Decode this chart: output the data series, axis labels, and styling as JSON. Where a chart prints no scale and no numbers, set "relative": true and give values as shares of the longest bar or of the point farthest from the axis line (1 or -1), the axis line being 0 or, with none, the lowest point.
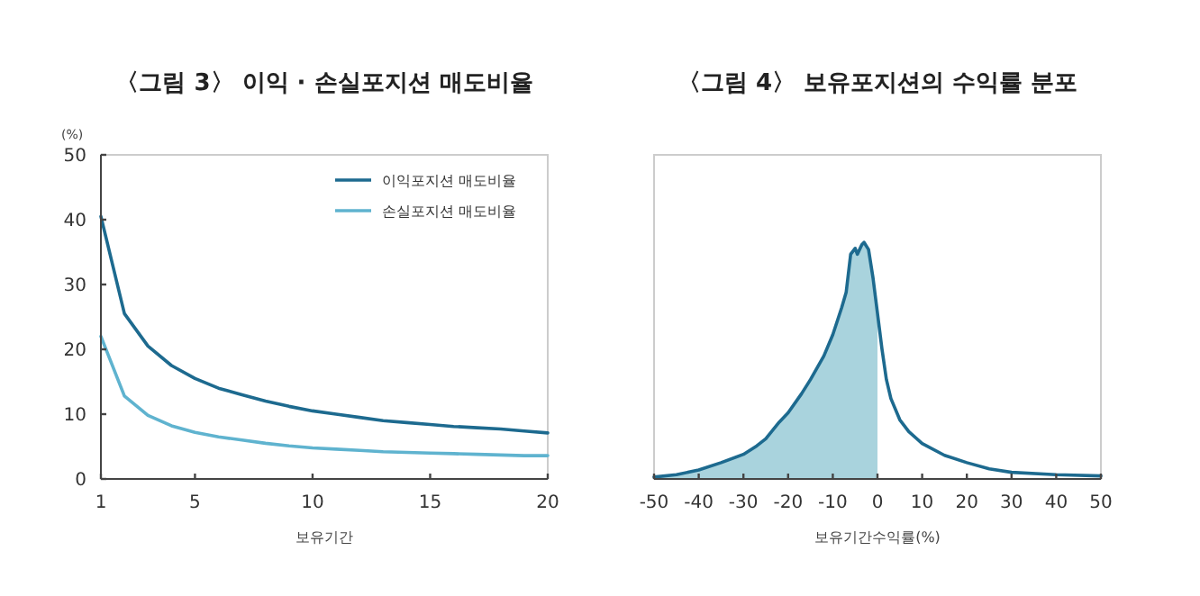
{
  "chart_data": [
    {
      "type": "line",
      "title": "〈그림 3〉 이익 · 손실포지션 매도비율",
      "xlabel": "보유기간",
      "ylabel": "(%)",
      "x": [
        1,
        2,
        3,
        4,
        5,
        6,
        7,
        8,
        9,
        10,
        11,
        12,
        13,
        14,
        15,
        16,
        17,
        18,
        19,
        20
      ],
      "xlim": [
        1,
        20
      ],
      "xticks": [
        1,
        5,
        10,
        15,
        20
      ],
      "ylim": [
        0,
        50
      ],
      "yticks": [
        0,
        10,
        20,
        30,
        40,
        50
      ],
      "legend": "top right",
      "series": [
        {
          "name": "이익포지션 매도비율",
          "color": "#1d6a8f",
          "values": [
            40.5,
            25.5,
            20.5,
            17.5,
            15.5,
            14,
            13,
            12,
            11.2,
            10.5,
            10,
            9.5,
            9,
            8.7,
            8.4,
            8.1,
            7.9,
            7.7,
            7.4,
            7.1
          ]
        },
        {
          "name": "손실포지션 매도비율",
          "color": "#5fb3cf",
          "values": [
            22,
            12.8,
            9.8,
            8.2,
            7.2,
            6.5,
            6,
            5.5,
            5.1,
            4.8,
            4.6,
            4.4,
            4.2,
            4.1,
            4.0,
            3.9,
            3.8,
            3.7,
            3.6,
            3.6
          ]
        }
      ]
    },
    {
      "type": "line",
      "title": "〈그림 4〉 보유포지션의 수익률 분포",
      "xlabel": "보유기간수익률(%)",
      "relative": true,
      "xlim": [
        -50,
        50
      ],
      "xticks": [
        -50,
        -40,
        -30,
        -20,
        -10,
        0,
        10,
        20,
        30,
        40,
        50
      ],
      "tick_labels": "x",
      "series": [
        {
          "type": "area",
          "color": "#a9d3dd",
          "x": [
            -50,
            -45,
            -40,
            -35,
            -30,
            -27,
            -25,
            -22,
            -20,
            -17,
            -15,
            -12,
            -10,
            -8,
            -7,
            -6,
            -5,
            -4.5,
            -3.5,
            -3,
            -2,
            -1,
            0
          ],
          "values": [
            0.008,
            0.018,
            0.038,
            0.069,
            0.104,
            0.14,
            0.17,
            0.24,
            0.28,
            0.36,
            0.42,
            0.52,
            0.61,
            0.725,
            0.79,
            0.95,
            0.975,
            0.95,
            0.99,
            1.0,
            0.97,
            0.85,
            0.7
          ]
        },
        {
          "color": "#1d6a8f",
          "x": [
            -50,
            -45,
            -40,
            -35,
            -30,
            -27,
            -25,
            -22,
            -20,
            -17,
            -15,
            -12,
            -10,
            -8,
            -7,
            -6,
            -5,
            -4.5,
            -3.5,
            -3,
            -2,
            -1,
            0,
            1,
            2,
            3,
            5,
            7,
            10,
            15,
            20,
            25,
            30,
            40,
            50
          ],
          "values": [
            0.008,
            0.018,
            0.038,
            0.069,
            0.104,
            0.14,
            0.17,
            0.24,
            0.28,
            0.36,
            0.42,
            0.52,
            0.61,
            0.725,
            0.79,
            0.95,
            0.975,
            0.95,
            0.99,
            1.0,
            0.97,
            0.85,
            0.7,
            0.55,
            0.42,
            0.34,
            0.25,
            0.2,
            0.15,
            0.1,
            0.069,
            0.043,
            0.028,
            0.018,
            0.013
          ]
        }
      ]
    }
  ]
}
